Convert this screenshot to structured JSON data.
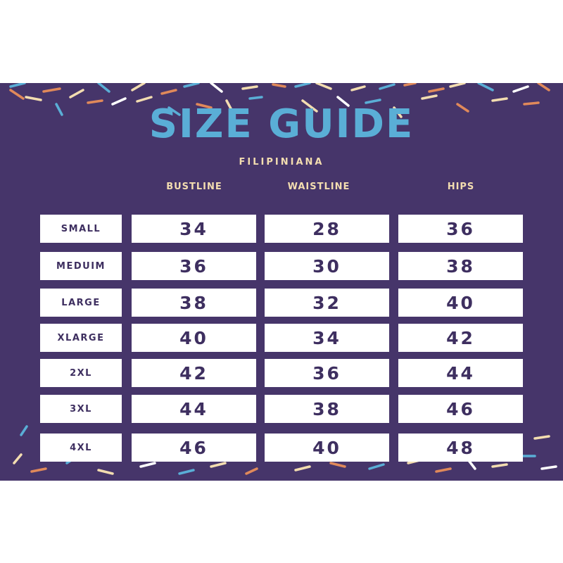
{
  "title": "SIZE GUIDE",
  "subtitle": "FILIPINIANA",
  "columns": [
    "BUSTLINE",
    "WAISTLINE",
    "HIPS"
  ],
  "rows": [
    {
      "size": "SMALL",
      "values": [
        "34",
        "28",
        "36"
      ]
    },
    {
      "size": "MEDUIM",
      "values": [
        "36",
        "30",
        "38"
      ]
    },
    {
      "size": "LARGE",
      "values": [
        "38",
        "32",
        "40"
      ]
    },
    {
      "size": "XLARGE",
      "values": [
        "40",
        "34",
        "42"
      ]
    },
    {
      "size": "2XL",
      "values": [
        "42",
        "36",
        "44"
      ]
    },
    {
      "size": "3XL",
      "values": [
        "44",
        "38",
        "46"
      ]
    },
    {
      "size": "4XL",
      "values": [
        "46",
        "40",
        "48"
      ]
    }
  ],
  "colors": {
    "background": "#46356a",
    "title": "#5aaed6",
    "accent_text": "#f3ddb0",
    "cell_text": "#3e2f60",
    "confetti": [
      "#5aaed6",
      "#e0895a",
      "#f3ddb0",
      "#ffffff"
    ]
  }
}
